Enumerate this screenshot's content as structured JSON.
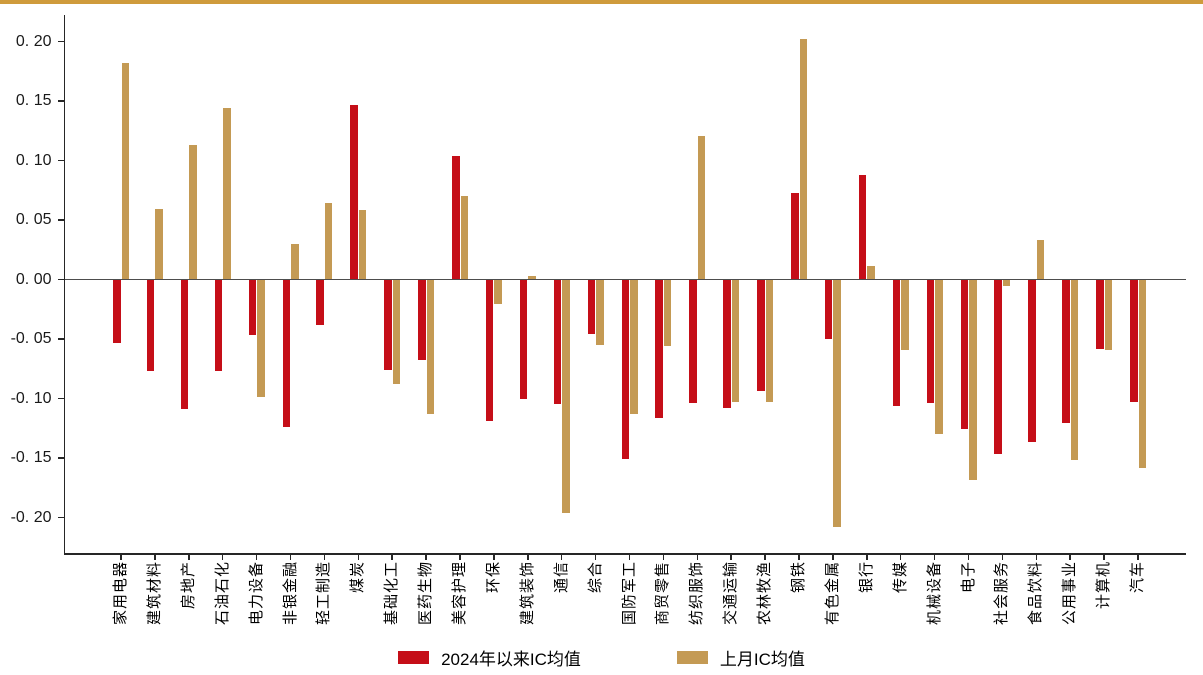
{
  "page": {
    "top_border_color": "#cf9b3c",
    "background_color": "#ffffff"
  },
  "chart_data": {
    "type": "bar",
    "title": "",
    "xlabel": "",
    "ylabel": "",
    "grid": false,
    "legend_position": "bottom",
    "ylim": [
      -0.228,
      0.222
    ],
    "categories": [
      "家用电器",
      "建筑材料",
      "房地产",
      "石油石化",
      "电力设备",
      "非银金融",
      "轻工制造",
      "煤炭",
      "基础化工",
      "医药生物",
      "美容护理",
      "环保",
      "建筑装饰",
      "通信",
      "综合",
      "国防军工",
      "商贸零售",
      "纺织服饰",
      "交通运输",
      "农林牧渔",
      "钢铁",
      "有色金属",
      "银行",
      "传媒",
      "机械设备",
      "电子",
      "社会服务",
      "食品饮料",
      "公用事业",
      "计算机",
      "汽车"
    ],
    "series": [
      {
        "name": "2024年以来IC均值",
        "color": "#c50e18",
        "values": [
          -0.053,
          -0.076,
          -0.108,
          -0.076,
          -0.046,
          -0.123,
          -0.038,
          0.147,
          -0.075,
          -0.067,
          0.104,
          -0.118,
          -0.1,
          -0.104,
          -0.045,
          -0.15,
          -0.116,
          -0.103,
          -0.107,
          -0.093,
          0.073,
          -0.049,
          0.088,
          -0.106,
          -0.103,
          -0.125,
          -0.146,
          -0.136,
          -0.12,
          -0.058,
          -0.102
        ]
      },
      {
        "name": "上月IC均值",
        "color": "#c49a54",
        "values": [
          0.182,
          0.059,
          0.113,
          0.144,
          -0.098,
          0.03,
          0.064,
          0.058,
          -0.087,
          -0.112,
          0.07,
          -0.02,
          0.003,
          -0.196,
          -0.054,
          -0.112,
          -0.055,
          0.121,
          -0.102,
          -0.102,
          0.202,
          -0.207,
          0.011,
          -0.059,
          -0.129,
          -0.168,
          -0.005,
          0.033,
          -0.151,
          -0.059,
          -0.158
        ]
      }
    ],
    "y_ticks": [
      {
        "value": 0.2,
        "label": "0. 20"
      },
      {
        "value": 0.15,
        "label": "0. 15"
      },
      {
        "value": 0.1,
        "label": "0. 10"
      },
      {
        "value": 0.05,
        "label": "0. 05"
      },
      {
        "value": 0.0,
        "label": "0. 00"
      },
      {
        "value": -0.05,
        "label": "-0. 05"
      },
      {
        "value": -0.1,
        "label": "-0. 10"
      },
      {
        "value": -0.15,
        "label": "-0. 15"
      },
      {
        "value": -0.2,
        "label": "-0. 20"
      }
    ]
  }
}
